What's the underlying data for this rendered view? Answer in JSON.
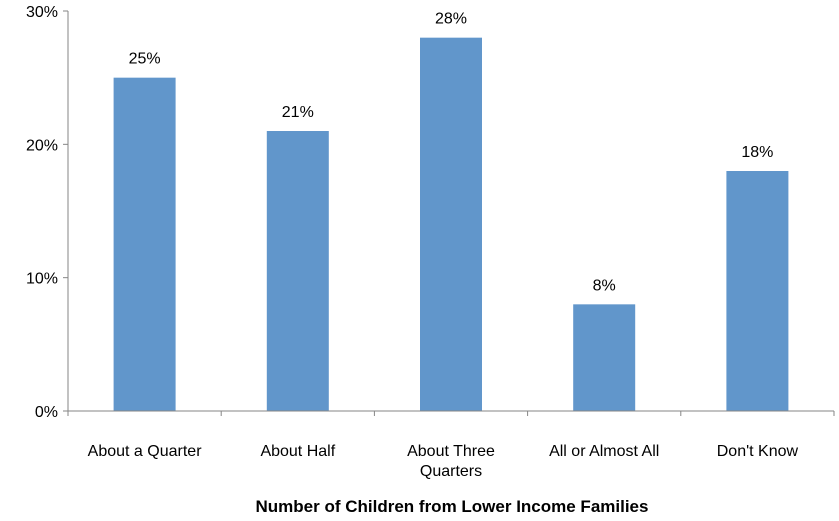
{
  "chart_data": {
    "type": "bar",
    "title": "",
    "xlabel": "Number of Children from Lower Income Families",
    "ylabel": "",
    "categories": [
      [
        "About a Quarter"
      ],
      [
        "About Half"
      ],
      [
        "About Three",
        "Quarters"
      ],
      [
        "All or Almost All"
      ],
      [
        "Don't Know"
      ]
    ],
    "values": [
      25,
      21,
      28,
      8,
      18
    ],
    "data_labels": [
      "25%",
      "21%",
      "28%",
      "8%",
      "18%"
    ],
    "ylim": [
      0,
      30
    ],
    "yticks": [
      0,
      10,
      20,
      30
    ],
    "ytick_labels": [
      "0%",
      "10%",
      "20%",
      "30%"
    ],
    "grid": false,
    "legend": "none",
    "bar_color": "#6196CB"
  }
}
